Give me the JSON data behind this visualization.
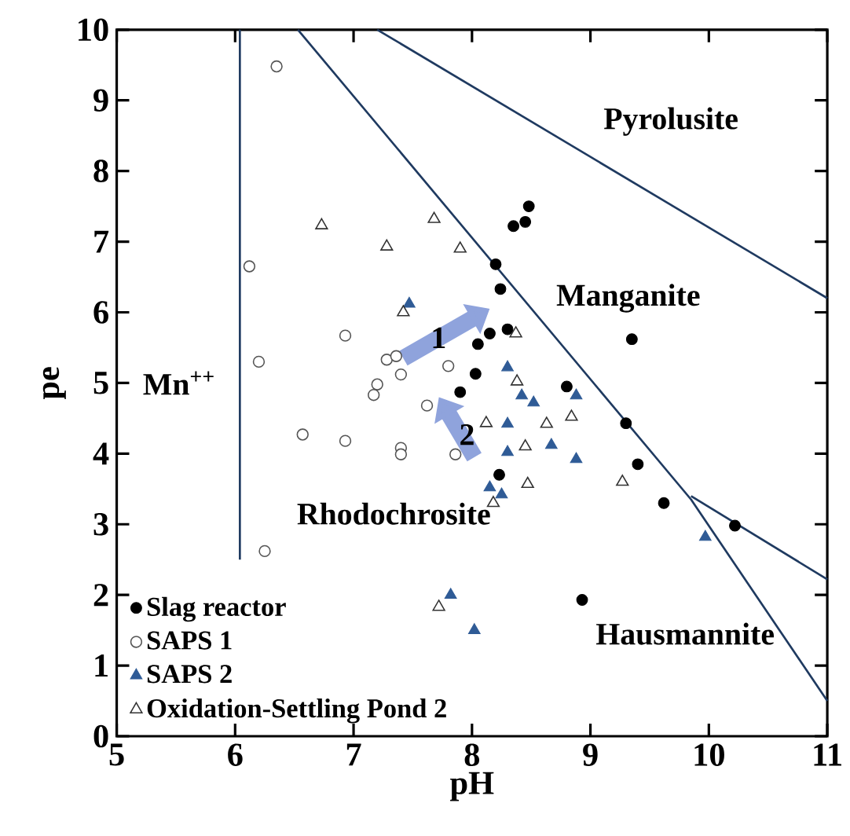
{
  "chart_data": {
    "type": "scatter",
    "xlabel": "pH",
    "ylabel": "pe",
    "xlim": [
      5,
      11
    ],
    "ylim": [
      0,
      10
    ],
    "xticks": [
      5,
      6,
      7,
      8,
      9,
      10,
      11
    ],
    "yticks": [
      0,
      1,
      2,
      3,
      4,
      5,
      6,
      7,
      8,
      9,
      10
    ],
    "grid": false,
    "legend": "bottom left",
    "series": [
      {
        "name": "Slag reactor",
        "color": "#000000",
        "marker": "circle",
        "x": [
          8.48,
          8.45,
          8.35,
          8.2,
          8.24,
          8.3,
          8.15,
          8.05,
          8.03,
          7.9,
          8.8,
          9.35,
          9.3,
          9.4,
          9.62,
          10.22,
          8.93,
          8.23
        ],
        "values": [
          7.5,
          7.28,
          7.22,
          6.68,
          6.33,
          5.76,
          5.7,
          5.55,
          5.13,
          4.87,
          4.95,
          5.62,
          4.43,
          3.85,
          3.3,
          2.98,
          1.93,
          3.7
        ]
      },
      {
        "name": "SAPS 1",
        "color": "#555555",
        "marker": "circle-open",
        "x": [
          6.35,
          6.12,
          6.2,
          6.93,
          7.28,
          7.36,
          7.4,
          7.8,
          7.2,
          7.17,
          7.62,
          6.57,
          6.93,
          7.4,
          7.4,
          7.86,
          6.25
        ],
        "values": [
          9.48,
          6.65,
          5.3,
          5.67,
          5.33,
          5.38,
          5.12,
          5.24,
          4.98,
          4.83,
          4.68,
          4.27,
          4.18,
          4.08,
          3.99,
          3.99,
          2.62
        ]
      },
      {
        "name": "SAPS 2",
        "color": "#2f5b96",
        "marker": "triangle",
        "x": [
          7.47,
          8.3,
          8.42,
          8.52,
          8.88,
          8.3,
          8.3,
          8.67,
          8.88,
          8.15,
          8.25,
          7.82,
          8.02,
          9.97
        ],
        "values": [
          6.12,
          5.22,
          4.82,
          4.72,
          4.82,
          4.42,
          4.02,
          4.12,
          3.92,
          3.52,
          3.42,
          2.0,
          1.5,
          2.82
        ]
      },
      {
        "name": "Oxidation-Settling Pond 2",
        "color": "#333333",
        "marker": "triangle-open",
        "x": [
          6.73,
          7.68,
          7.28,
          7.9,
          7.42,
          8.37,
          8.38,
          8.12,
          8.63,
          8.84,
          8.45,
          9.27,
          8.18,
          7.72,
          8.47
        ],
        "values": [
          7.23,
          7.32,
          6.93,
          6.9,
          6.0,
          5.7,
          5.02,
          4.43,
          4.42,
          4.52,
          4.1,
          3.6,
          3.3,
          1.83,
          3.57
        ]
      },
      {
        "type": "line",
        "color": "#1f3a60",
        "marker": "none",
        "x": [
          6.04,
          6.04
        ],
        "values": [
          2.5,
          10
        ]
      },
      {
        "type": "line",
        "color": "#1f3a60",
        "marker": "none",
        "x": [
          6.53,
          9.85,
          11
        ],
        "values": [
          10,
          3.35,
          0.5
        ]
      },
      {
        "type": "line",
        "color": "#1f3a60",
        "marker": "none",
        "x": [
          7.2,
          11
        ],
        "values": [
          10,
          6.2
        ]
      },
      {
        "type": "line",
        "color": "#1f3a60",
        "marker": "none",
        "x": [
          9.85,
          11
        ],
        "values": [
          3.4,
          2.22
        ]
      }
    ],
    "annotations": [
      "Pyrolusite",
      "Manganite",
      "Mn$^{++}$",
      "Rhodochrosite",
      "Hausmannite",
      "1",
      "2"
    ]
  }
}
